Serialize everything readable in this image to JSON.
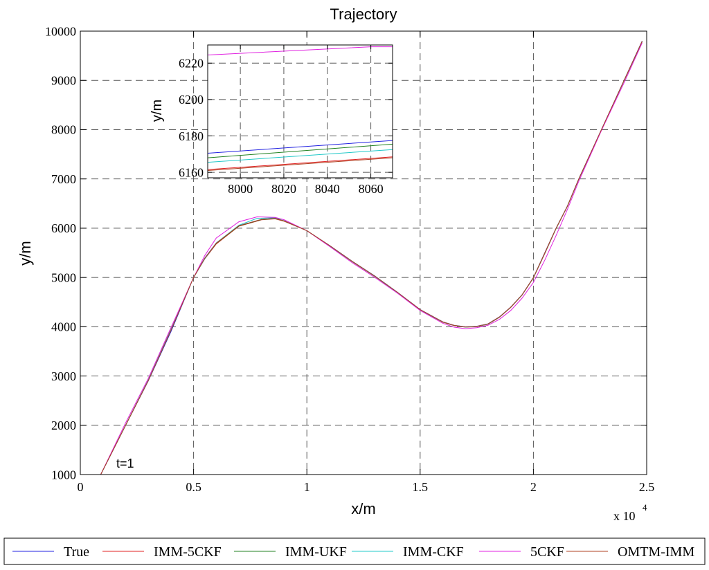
{
  "chart_data": {
    "type": "line",
    "title": "Trajectory",
    "xlabel": "x/m",
    "ylabel": "y/m",
    "x_exponent_label": "x 10",
    "x_exponent_power": "4",
    "xlim": [
      0,
      25000
    ],
    "ylim": [
      1000,
      10000
    ],
    "xticks": [
      0,
      5000,
      10000,
      15000,
      20000,
      25000
    ],
    "xtick_labels": [
      "0",
      "0.5",
      "1",
      "1.5",
      "2",
      "2.5"
    ],
    "yticks": [
      1000,
      2000,
      3000,
      4000,
      5000,
      6000,
      7000,
      8000,
      9000,
      10000
    ],
    "ytick_labels": [
      "1000",
      "2000",
      "3000",
      "4000",
      "5000",
      "6000",
      "7000",
      "8000",
      "9000",
      "10000"
    ],
    "grid": true,
    "legend_placement": "bottom",
    "annotation": "t=1",
    "annotation_point": [
      1600,
      1200
    ],
    "series": [
      {
        "name": "True",
        "color": "#2020e0",
        "values": [
          [
            900,
            1000
          ],
          [
            2000,
            2000
          ],
          [
            3000,
            2900
          ],
          [
            4000,
            3900
          ],
          [
            5000,
            5000
          ],
          [
            5500,
            5400
          ],
          [
            6000,
            5700
          ],
          [
            7000,
            6050
          ],
          [
            8000,
            6180
          ],
          [
            8600,
            6200
          ],
          [
            9000,
            6150
          ],
          [
            10000,
            5950
          ],
          [
            11000,
            5650
          ],
          [
            12000,
            5330
          ],
          [
            13000,
            5030
          ],
          [
            14000,
            4700
          ],
          [
            15000,
            4350
          ],
          [
            16000,
            4100
          ],
          [
            16500,
            4030
          ],
          [
            17000,
            4000
          ],
          [
            17500,
            4010
          ],
          [
            18000,
            4060
          ],
          [
            18500,
            4200
          ],
          [
            19000,
            4400
          ],
          [
            19500,
            4650
          ],
          [
            20000,
            5000
          ],
          [
            20500,
            5500
          ],
          [
            21000,
            6000
          ],
          [
            21500,
            6450
          ],
          [
            22000,
            7000
          ],
          [
            23000,
            8000
          ],
          [
            24000,
            9000
          ],
          [
            24800,
            9800
          ]
        ]
      },
      {
        "name": "IMM-5CKF",
        "color": "#e02020",
        "values": [
          [
            900,
            1000
          ],
          [
            2000,
            2000
          ],
          [
            3000,
            2920
          ],
          [
            4000,
            3950
          ],
          [
            5000,
            5000
          ],
          [
            5500,
            5380
          ],
          [
            6000,
            5680
          ],
          [
            7000,
            6040
          ],
          [
            8000,
            6170
          ],
          [
            8600,
            6190
          ],
          [
            9000,
            6140
          ],
          [
            10000,
            5950
          ],
          [
            11000,
            5640
          ],
          [
            12000,
            5320
          ],
          [
            13000,
            5020
          ],
          [
            14000,
            4690
          ],
          [
            15000,
            4340
          ],
          [
            16000,
            4090
          ],
          [
            16500,
            4020
          ],
          [
            17000,
            3990
          ],
          [
            17500,
            4000
          ],
          [
            18000,
            4050
          ],
          [
            18500,
            4190
          ],
          [
            19000,
            4390
          ],
          [
            19500,
            4640
          ],
          [
            20000,
            4990
          ],
          [
            20500,
            5480
          ],
          [
            21000,
            5990
          ],
          [
            21500,
            6440
          ],
          [
            22000,
            6990
          ],
          [
            23000,
            7990
          ],
          [
            24000,
            8990
          ],
          [
            24800,
            9780
          ]
        ]
      },
      {
        "name": "IMM-UKF",
        "color": "#208020",
        "values": [
          [
            900,
            1000
          ],
          [
            2000,
            2000
          ],
          [
            3000,
            2910
          ],
          [
            4000,
            3930
          ],
          [
            5000,
            5000
          ],
          [
            5500,
            5390
          ],
          [
            6000,
            5690
          ],
          [
            7000,
            6045
          ],
          [
            8000,
            6175
          ],
          [
            8600,
            6195
          ],
          [
            9000,
            6145
          ],
          [
            10000,
            5950
          ],
          [
            11000,
            5645
          ],
          [
            12000,
            5325
          ],
          [
            13000,
            5025
          ],
          [
            14000,
            4695
          ],
          [
            15000,
            4345
          ],
          [
            16000,
            4095
          ],
          [
            16500,
            4025
          ],
          [
            17000,
            3995
          ],
          [
            17500,
            4005
          ],
          [
            18000,
            4055
          ],
          [
            18500,
            4195
          ],
          [
            19000,
            4395
          ],
          [
            19500,
            4645
          ],
          [
            20000,
            4995
          ],
          [
            20500,
            5490
          ],
          [
            21000,
            5995
          ],
          [
            21500,
            6445
          ],
          [
            22000,
            6995
          ],
          [
            23000,
            7995
          ],
          [
            24000,
            8995
          ],
          [
            24800,
            9790
          ]
        ]
      },
      {
        "name": "IMM-CKF",
        "color": "#20c8c8",
        "values": [
          [
            900,
            1000
          ],
          [
            2000,
            2000
          ],
          [
            3000,
            2915
          ],
          [
            4000,
            3940
          ],
          [
            5000,
            5000
          ],
          [
            5500,
            5385
          ],
          [
            6000,
            5700
          ],
          [
            7000,
            6060
          ],
          [
            7800,
            6200
          ],
          [
            8600,
            6210
          ],
          [
            9000,
            6150
          ],
          [
            10000,
            5950
          ],
          [
            11000,
            5645
          ],
          [
            12000,
            5325
          ],
          [
            13000,
            5025
          ],
          [
            14000,
            4695
          ],
          [
            15000,
            4345
          ],
          [
            16000,
            4095
          ],
          [
            16500,
            4025
          ],
          [
            17000,
            3995
          ],
          [
            17500,
            4005
          ],
          [
            18000,
            4055
          ],
          [
            18500,
            4195
          ],
          [
            19000,
            4395
          ],
          [
            19500,
            4645
          ],
          [
            20000,
            4995
          ],
          [
            20500,
            5490
          ],
          [
            21000,
            5995
          ],
          [
            21500,
            6445
          ],
          [
            22000,
            6995
          ],
          [
            23000,
            7995
          ],
          [
            24000,
            8995
          ],
          [
            24800,
            9790
          ]
        ]
      },
      {
        "name": "5CKF",
        "color": "#e020e0",
        "values": [
          [
            900,
            1000
          ],
          [
            2000,
            2050
          ],
          [
            3000,
            2950
          ],
          [
            4000,
            3980
          ],
          [
            5000,
            5000
          ],
          [
            5500,
            5450
          ],
          [
            6000,
            5800
          ],
          [
            7000,
            6130
          ],
          [
            7800,
            6230
          ],
          [
            8600,
            6220
          ],
          [
            9000,
            6170
          ],
          [
            10000,
            5950
          ],
          [
            11000,
            5630
          ],
          [
            12000,
            5300
          ],
          [
            13000,
            5000
          ],
          [
            14000,
            4680
          ],
          [
            15000,
            4330
          ],
          [
            16000,
            4070
          ],
          [
            16500,
            3990
          ],
          [
            17000,
            3960
          ],
          [
            17500,
            3980
          ],
          [
            18000,
            4030
          ],
          [
            18500,
            4150
          ],
          [
            19000,
            4330
          ],
          [
            19500,
            4580
          ],
          [
            20000,
            4900
          ],
          [
            20500,
            5350
          ],
          [
            21000,
            5850
          ],
          [
            21500,
            6380
          ],
          [
            22000,
            6950
          ],
          [
            23000,
            7980
          ],
          [
            24000,
            8950
          ],
          [
            24800,
            9760
          ]
        ]
      },
      {
        "name": "OMTM-IMM",
        "color": "#b04020",
        "values": [
          [
            900,
            1000
          ],
          [
            2000,
            2000
          ],
          [
            3000,
            2905
          ],
          [
            4000,
            3925
          ],
          [
            5000,
            5000
          ],
          [
            5500,
            5395
          ],
          [
            6000,
            5695
          ],
          [
            7000,
            6050
          ],
          [
            8000,
            6180
          ],
          [
            8600,
            6198
          ],
          [
            9000,
            6148
          ],
          [
            10000,
            5950
          ],
          [
            11000,
            5648
          ],
          [
            12000,
            5328
          ],
          [
            13000,
            5028
          ],
          [
            14000,
            4698
          ],
          [
            15000,
            4348
          ],
          [
            16000,
            4098
          ],
          [
            16500,
            4028
          ],
          [
            17000,
            3998
          ],
          [
            17500,
            4008
          ],
          [
            18000,
            4058
          ],
          [
            18500,
            4198
          ],
          [
            19000,
            4398
          ],
          [
            19500,
            4648
          ],
          [
            20000,
            4998
          ],
          [
            20500,
            5495
          ],
          [
            21000,
            5998
          ],
          [
            21500,
            6448
          ],
          [
            22000,
            6998
          ],
          [
            23000,
            7998
          ],
          [
            24000,
            8998
          ],
          [
            24800,
            9795
          ]
        ]
      }
    ],
    "inset": {
      "ylabel": "y/m",
      "xlim": [
        7985,
        8070
      ],
      "ylim": [
        6157,
        6230
      ],
      "xticks": [
        8000,
        8020,
        8040,
        8060
      ],
      "xtick_labels": [
        "8000",
        "8020",
        "8040",
        "8060"
      ],
      "yticks": [
        6160,
        6180,
        6200,
        6220
      ],
      "ytick_labels": [
        "6160",
        "6180",
        "6200",
        "6220"
      ],
      "grid": true,
      "series": [
        {
          "name": "True",
          "color": "#2020e0",
          "values": [
            [
              7985,
              6170.5
            ],
            [
              8070,
              6177.5
            ]
          ]
        },
        {
          "name": "IMM-UKF",
          "color": "#208020",
          "values": [
            [
              7985,
              6168
            ],
            [
              8070,
              6175.5
            ]
          ]
        },
        {
          "name": "IMM-CKF",
          "color": "#20c8c8",
          "values": [
            [
              7985,
              6165.5
            ],
            [
              8070,
              6172.5
            ]
          ]
        },
        {
          "name": "IMM-5CKF",
          "color": "#e02020",
          "values": [
            [
              7985,
              6161.5
            ],
            [
              8070,
              6168.5
            ]
          ]
        },
        {
          "name": "OMTM-IMM",
          "color": "#b04020",
          "values": [
            [
              7985,
              6161
            ],
            [
              8070,
              6168
            ]
          ]
        },
        {
          "name": "5CKF",
          "color": "#e020e0",
          "values": [
            [
              7985,
              6224.5
            ],
            [
              8060,
              6229
            ],
            [
              8070,
              6229
            ]
          ]
        }
      ]
    }
  }
}
